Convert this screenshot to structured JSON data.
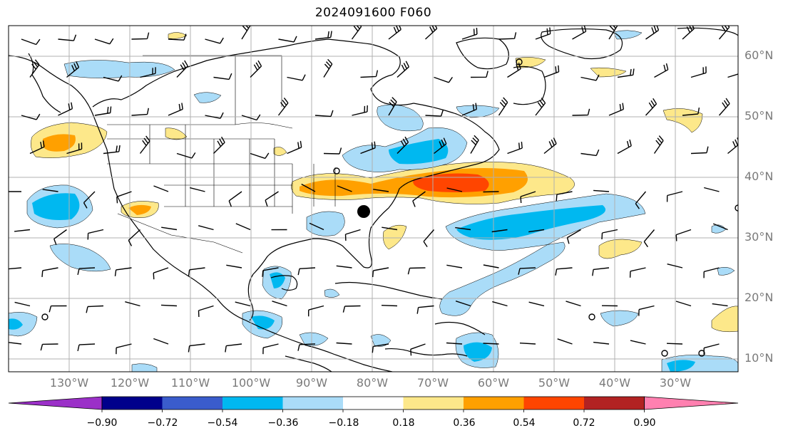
{
  "title": "2024091600 F060",
  "lat_labels": [
    "60°N",
    "50°N",
    "40°N",
    "30°N",
    "20°N",
    "10°N"
  ],
  "lon_labels": [
    "130°W",
    "120°W",
    "110°W",
    "100°W",
    "90°W",
    "80°W",
    "70°W",
    "60°W",
    "50°W",
    "40°W",
    "30°W"
  ],
  "colorbar": {
    "ticks": [
      "−0.90",
      "−0.72",
      "−0.54",
      "−0.36",
      "−0.18",
      "0.18",
      "0.36",
      "0.54",
      "0.72",
      "0.90"
    ],
    "under_color": "#9b30c8",
    "colors": [
      "#00008b",
      "#3a5ccc",
      "#00b8f0",
      "#aadcf8",
      "#ffffff",
      "#fde88a",
      "#ffa000",
      "#ff4500",
      "#b22222"
    ],
    "over_color": "#ff80b0"
  },
  "map_colors": {
    "grid": "#b0b0b0",
    "coast": "#000000",
    "neg_light": "#aadcf8",
    "neg_mid": "#00b8f0",
    "pos_light": "#fde88a",
    "pos_mid": "#ffa000",
    "pos_high": "#ff4500"
  }
}
